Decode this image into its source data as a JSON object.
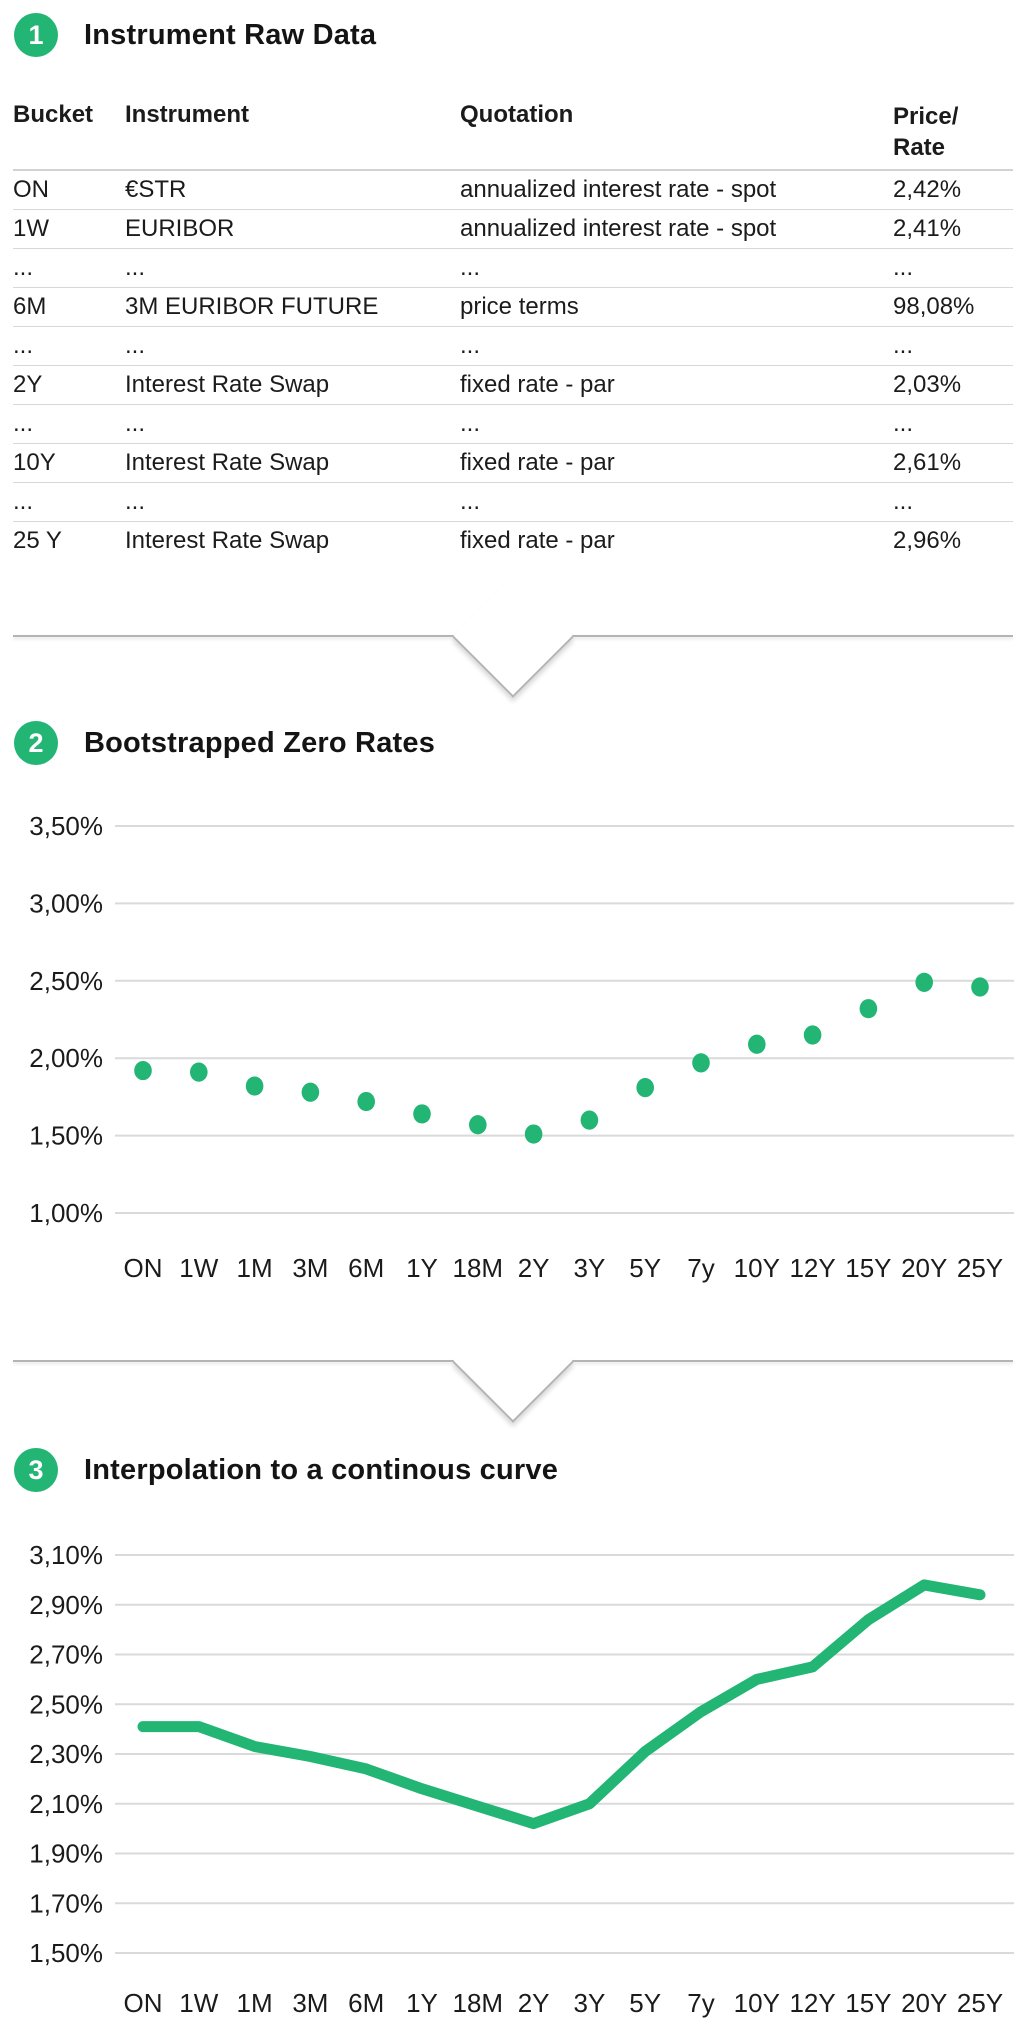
{
  "colors": {
    "accent_green": "#22b573",
    "text": "#1b1b1b",
    "gridline": "#dadada",
    "divider_line": "#b4b4b4"
  },
  "sections": [
    {
      "badge": "1",
      "title": "Instrument Raw Data"
    },
    {
      "badge": "2",
      "title": "Bootstrapped Zero Rates"
    },
    {
      "badge": "3",
      "title": "Interpolation to a continous curve"
    }
  ],
  "table": {
    "headers": [
      "Bucket",
      "Instrument",
      "Quotation"
    ],
    "price_header": [
      "Price/",
      "Rate"
    ],
    "rows": [
      [
        "ON",
        "€STR",
        "annualized interest rate - spot",
        "2,42%"
      ],
      [
        "1W",
        "EURIBOR",
        "annualized interest rate - spot",
        "2,41%"
      ],
      [
        "...",
        "...",
        "...",
        "..."
      ],
      [
        "6M",
        "3M EURIBOR FUTURE",
        "price terms",
        "98,08%"
      ],
      [
        "...",
        "...",
        "...",
        "..."
      ],
      [
        "2Y",
        "Interest Rate Swap",
        "fixed rate - par",
        "2,03%"
      ],
      [
        "...",
        "...",
        "...",
        "..."
      ],
      [
        "10Y",
        "Interest Rate Swap",
        "fixed rate - par",
        "2,61%"
      ],
      [
        "...",
        "...",
        "...",
        "..."
      ],
      [
        "25 Y",
        "Interest Rate Swap",
        "fixed rate - par",
        "2,96%"
      ]
    ]
  },
  "chart_data": [
    {
      "type": "scatter",
      "title": "Bootstrapped Zero Rates",
      "categories": [
        "ON",
        "1W",
        "1M",
        "3M",
        "6M",
        "1Y",
        "18M",
        "2Y",
        "3Y",
        "5Y",
        "7y",
        "10Y",
        "12Y",
        "15Y",
        "20Y",
        "25Y"
      ],
      "values": [
        1.92,
        1.91,
        1.82,
        1.78,
        1.72,
        1.64,
        1.57,
        1.51,
        1.6,
        1.81,
        1.97,
        2.09,
        2.15,
        2.32,
        2.49,
        2.46
      ],
      "y_ticks": [
        {
          "label": "3,50%",
          "value": 3.5
        },
        {
          "label": "3,00%",
          "value": 3.0
        },
        {
          "label": "2,50%",
          "value": 2.5
        },
        {
          "label": "2,00%",
          "value": 2.0
        },
        {
          "label": "1,50%",
          "value": 1.5
        },
        {
          "label": "1,00%",
          "value": 1.0
        }
      ],
      "ylim": [
        1.0,
        3.5
      ],
      "xlabel": "",
      "ylabel": "",
      "grid": true,
      "legend": false,
      "marker_color": "#22b573"
    },
    {
      "type": "line",
      "title": "Interpolation to a continous curve",
      "categories": [
        "ON",
        "1W",
        "1M",
        "3M",
        "6M",
        "1Y",
        "18M",
        "2Y",
        "3Y",
        "5Y",
        "7y",
        "10Y",
        "12Y",
        "15Y",
        "20Y",
        "25Y"
      ],
      "values": [
        2.41,
        2.41,
        2.33,
        2.29,
        2.24,
        2.16,
        2.09,
        2.02,
        2.1,
        2.31,
        2.47,
        2.6,
        2.65,
        2.84,
        2.98,
        2.94
      ],
      "y_ticks": [
        {
          "label": "3,10%",
          "value": 3.1
        },
        {
          "label": "2,90%",
          "value": 2.9
        },
        {
          "label": "2,70%",
          "value": 2.7
        },
        {
          "label": "2,50%",
          "value": 2.5
        },
        {
          "label": "2,30%",
          "value": 2.3
        },
        {
          "label": "2,10%",
          "value": 2.1
        },
        {
          "label": "1,90%",
          "value": 1.9
        },
        {
          "label": "1,70%",
          "value": 1.7
        },
        {
          "label": "1,50%",
          "value": 1.5
        }
      ],
      "ylim": [
        1.5,
        3.1
      ],
      "xlabel": "",
      "ylabel": "",
      "grid": true,
      "legend": false,
      "line_color": "#22b573",
      "line_width": 11
    }
  ]
}
